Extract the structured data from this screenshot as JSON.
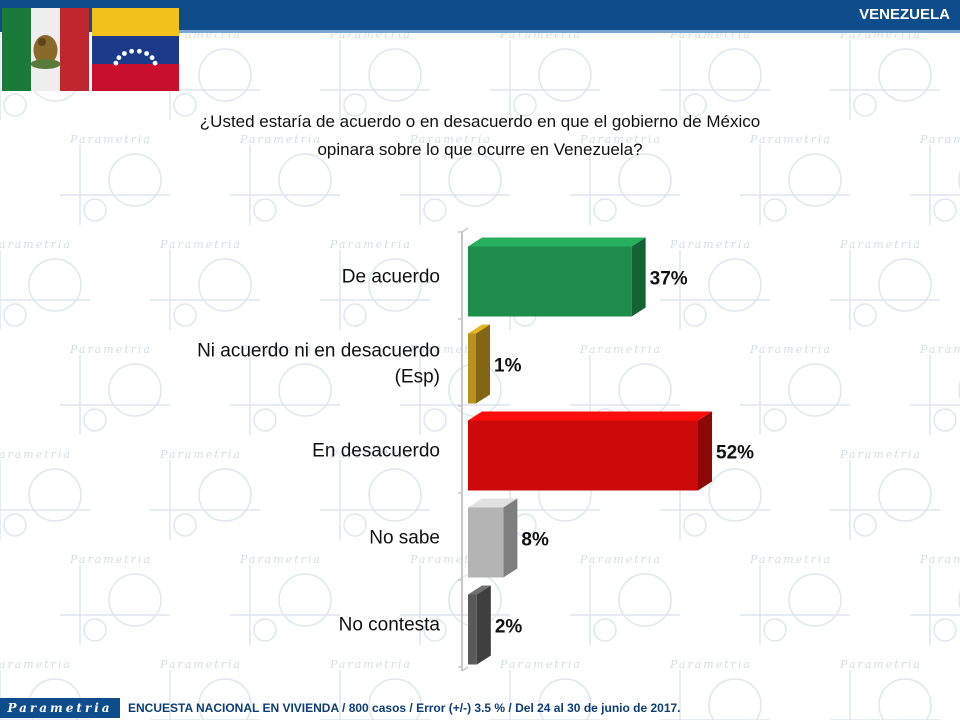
{
  "header": {
    "country_label": "VENEZUELA"
  },
  "question": {
    "line1": "¿Usted estaría de acuerdo o en desacuerdo en que el gobierno de México",
    "line2": "opinara sobre lo que ocurre en Venezuela?"
  },
  "background_watermark": "Parametria",
  "chart_data": {
    "type": "bar",
    "orientation": "horizontal",
    "categories": [
      [
        "De acuerdo"
      ],
      [
        "Ni acuerdo ni en desacuerdo",
        "(Esp)"
      ],
      [
        "En desacuerdo"
      ],
      [
        "No sabe"
      ],
      [
        "No contesta"
      ]
    ],
    "values": [
      37,
      1,
      52,
      8,
      2
    ],
    "value_labels": [
      "37%",
      "1%",
      "52%",
      "8%",
      "2%"
    ],
    "colors": [
      "#1e8c4a",
      "#b8911e",
      "#cc0a0a",
      "#b4b4b4",
      "#5a5a5a"
    ],
    "xlim": [
      0,
      60
    ],
    "grid": false
  },
  "footer": {
    "logo_text": "Parametria",
    "note": "ENCUESTA NACIONAL EN VIVIENDA / 800 casos / Error (+/-) 3.5 % / Del 24 al 30 de junio de 2017."
  }
}
